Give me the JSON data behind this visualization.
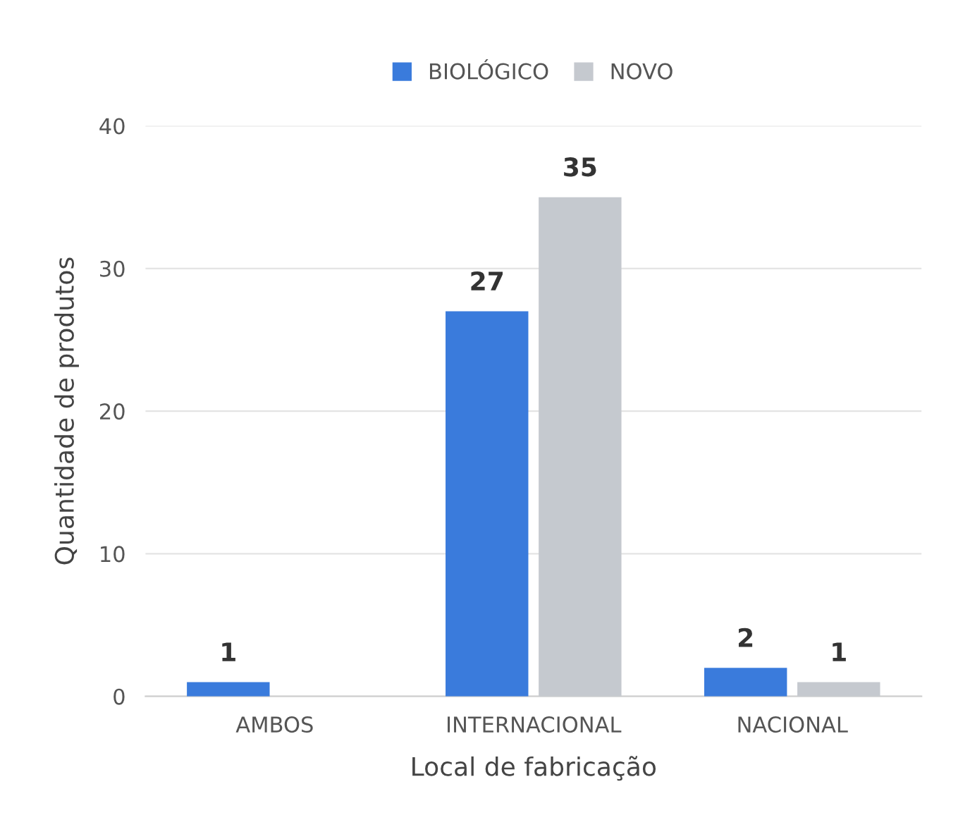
{
  "chart_data": {
    "type": "bar",
    "xlabel": "Local de fabricação",
    "ylabel": "Quantidade de produtos",
    "categories": [
      "AMBOS",
      "INTERNACIONAL",
      "NACIONAL"
    ],
    "series": [
      {
        "name": "BIOLÓGICO",
        "color": "#3a7bdc",
        "values": [
          1,
          27,
          2
        ]
      },
      {
        "name": "NOVO",
        "color": "#c5c9cf",
        "values": [
          null,
          35,
          1
        ]
      }
    ],
    "ylim": [
      0,
      40
    ],
    "yticks": [
      0,
      10,
      20,
      30,
      40
    ],
    "grid": "y",
    "legend": "top",
    "data_labels": true
  }
}
